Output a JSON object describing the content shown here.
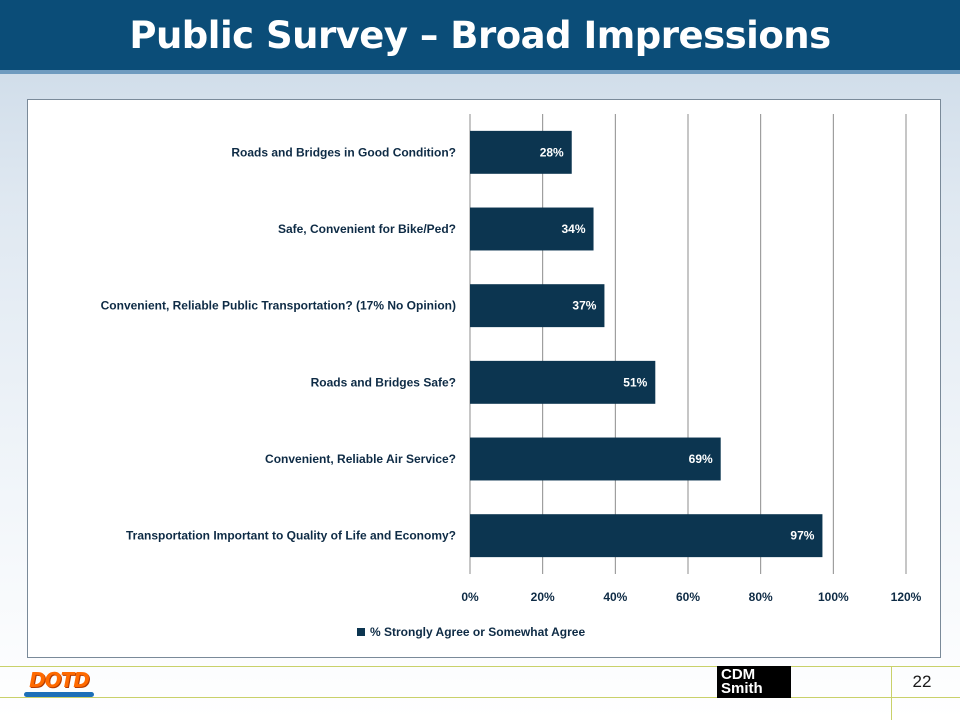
{
  "slide": {
    "title": "Public Survey – Broad Impressions",
    "page_number": "22"
  },
  "footer": {
    "left_logo_text": "DOTD",
    "right_logo_line1": "CDM",
    "right_logo_line2": "Smith"
  },
  "chart_data": {
    "type": "bar",
    "orientation": "horizontal",
    "categories": [
      "Roads and Bridges in Good Condition?",
      "Safe, Convenient for Bike/Ped?",
      "Convenient, Reliable Public Transportation? (17% No Opinion)",
      "Roads and Bridges Safe?",
      "Convenient, Reliable Air Service?",
      "Transportation Important to Quality of Life and Economy?"
    ],
    "series": [
      {
        "name": "% Strongly Agree or Somewhat Agree",
        "values": [
          28,
          34,
          37,
          51,
          69,
          97
        ],
        "data_labels": [
          "28%",
          "34%",
          "37%",
          "51%",
          "69%",
          "97%"
        ]
      }
    ],
    "xlim": [
      0,
      120
    ],
    "xticks": [
      "0%",
      "20%",
      "40%",
      "60%",
      "80%",
      "100%",
      "120%"
    ],
    "grid": true,
    "legend": "bottom",
    "colors": {
      "bar": "#0c3550",
      "grid": "#8c8c8c",
      "text": "#0e2b45"
    }
  }
}
